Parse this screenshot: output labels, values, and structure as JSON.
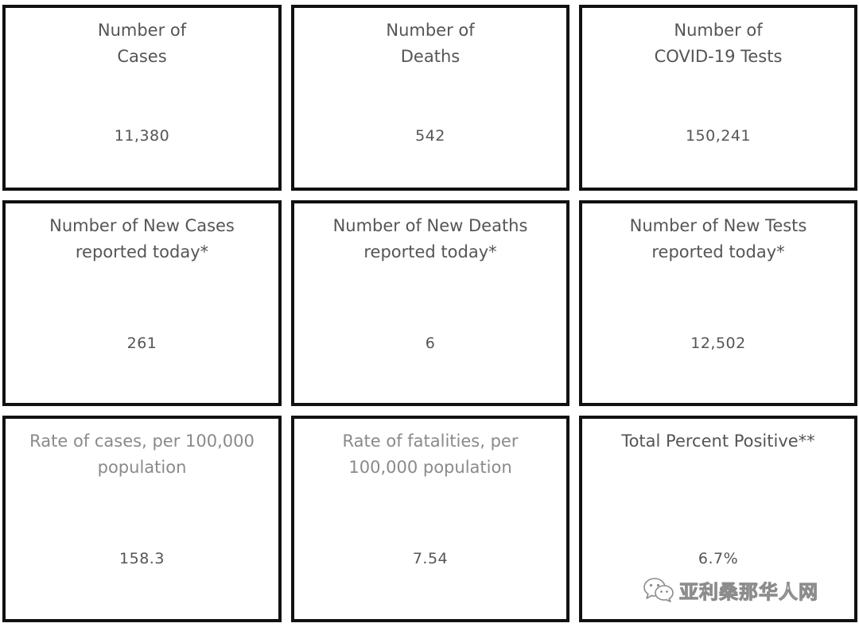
{
  "tiles": [
    {
      "title": "Number of\nCases",
      "value": "11,380"
    },
    {
      "title": "Number of\nDeaths",
      "value": "542"
    },
    {
      "title": "Number of\nCOVID-19 Tests",
      "value": "150,241"
    },
    {
      "title": "Number of New Cases\nreported today*",
      "value": "261"
    },
    {
      "title": "Number of New Deaths\nreported today*",
      "value": "6"
    },
    {
      "title": "Number of New Tests\nreported today*",
      "value": "12,502"
    },
    {
      "title": "Rate of cases, per 100,000\npopulation",
      "value": "158.3"
    },
    {
      "title": "Rate of fatalities, per\n100,000 population",
      "value": "7.54"
    },
    {
      "title": "Total Percent Positive**",
      "value": "6.7%"
    }
  ],
  "watermark": {
    "text": "亚利桑那华人网",
    "icon": "wechat-icon"
  },
  "colors": {
    "border": "#111111",
    "text": "#555555",
    "muted_text": "#8a8a8a",
    "background": "#ffffff"
  }
}
